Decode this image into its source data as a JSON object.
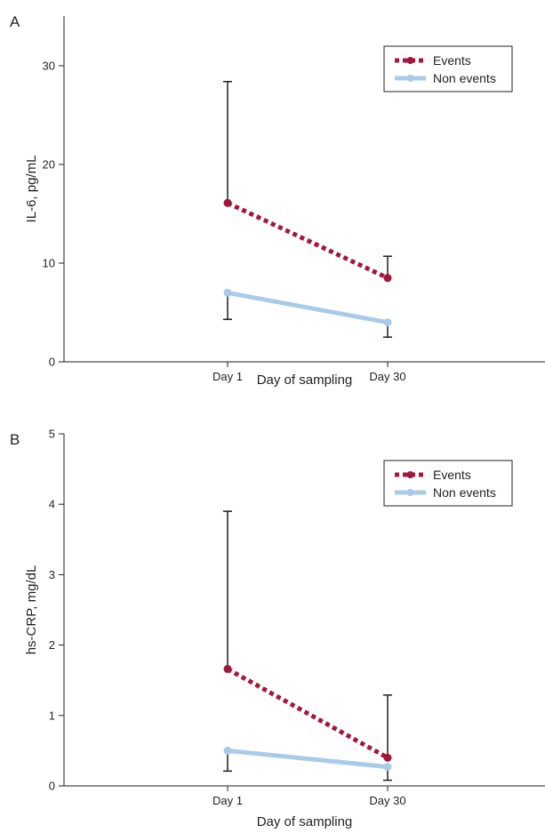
{
  "colors": {
    "events": "#a3173d",
    "non_events": "#a9cbe9",
    "axis": "#231f20",
    "error_bar": "#231f20"
  },
  "chart_data": [
    {
      "panel_label": "A",
      "type": "line",
      "xlabel": "Day of sampling",
      "ylabel": "IL-6, pg/mL",
      "categories": [
        "Day 1",
        "Day 30"
      ],
      "ylim": [
        0,
        30
      ],
      "yticks": [
        0,
        10,
        20,
        30
      ],
      "grid": false,
      "legend_position": "top-right",
      "series": [
        {
          "name": "Events",
          "style": "dotted",
          "values": [
            16.1,
            8.5
          ],
          "error_upper": [
            28.4,
            10.7
          ],
          "error_lower": [
            null,
            null
          ]
        },
        {
          "name": "Non events",
          "style": "solid",
          "values": [
            7.0,
            4.0
          ],
          "error_upper": [
            null,
            null
          ],
          "error_lower": [
            4.3,
            2.5
          ]
        }
      ]
    },
    {
      "panel_label": "B",
      "type": "line",
      "xlabel": "Day of sampling",
      "ylabel": "hs-CRP, mg/dL",
      "categories": [
        "Day 1",
        "Day 30"
      ],
      "ylim": [
        0,
        5
      ],
      "yticks": [
        0,
        1,
        2,
        3,
        4,
        5
      ],
      "grid": false,
      "legend_position": "top-right",
      "series": [
        {
          "name": "Events",
          "style": "dotted",
          "values": [
            1.66,
            0.4
          ],
          "error_upper": [
            3.9,
            1.29
          ],
          "error_lower": [
            null,
            null
          ]
        },
        {
          "name": "Non events",
          "style": "solid",
          "values": [
            0.5,
            0.27
          ],
          "error_upper": [
            null,
            null
          ],
          "error_lower": [
            0.21,
            0.08
          ]
        }
      ]
    }
  ]
}
